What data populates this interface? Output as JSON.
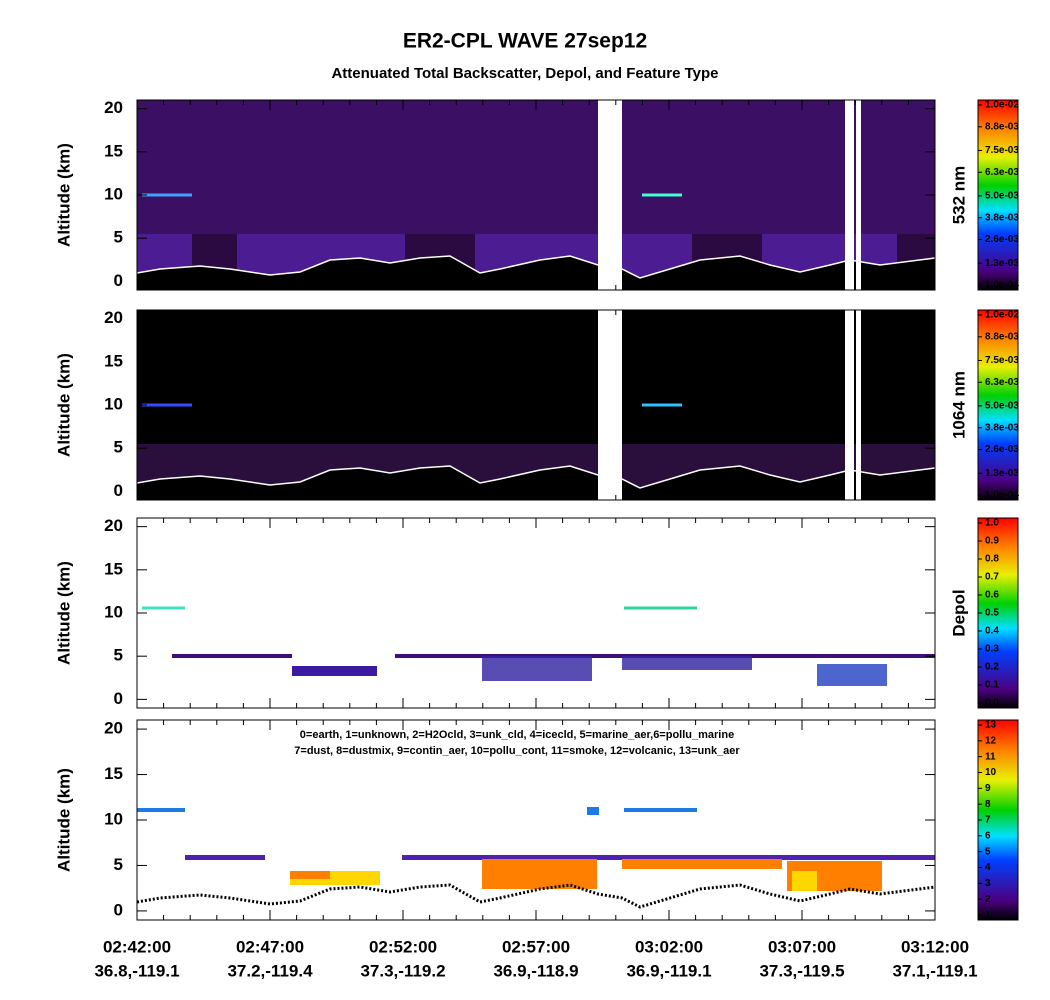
{
  "title": "ER2-CPL WAVE 27sep12",
  "subtitle": "Attenuated Total Backscatter, Depol, and Feature Type",
  "chart_data": [
    {
      "type": "heatmap",
      "ylabel": "Altitude (km)",
      "ylim": [
        -1,
        21
      ],
      "yticks": [
        0,
        5,
        10,
        15,
        20
      ],
      "colorbar": {
        "label": "532 nm",
        "clim": [
          0.0001,
          0.01
        ],
        "ticks": [
          {
            "value": 0.0001,
            "label": "1.0e-04"
          },
          {
            "value": 0.0013,
            "label": "1.3e-03"
          },
          {
            "value": 0.0026,
            "label": "2.6e-03"
          },
          {
            "value": 0.0038,
            "label": "3.8e-03"
          },
          {
            "value": 0.005,
            "label": "5.0e-03"
          },
          {
            "value": 0.0063,
            "label": "6.3e-03"
          },
          {
            "value": 0.0075,
            "label": "7.5e-03"
          },
          {
            "value": 0.0088,
            "label": "8.8e-03"
          },
          {
            "value": 0.01,
            "label": "1.0e-02"
          }
        ]
      }
    },
    {
      "type": "heatmap",
      "ylabel": "Altitude (km)",
      "ylim": [
        -1,
        21
      ],
      "yticks": [
        0,
        5,
        10,
        15,
        20
      ],
      "colorbar": {
        "label": "1064 nm",
        "clim": [
          0.0001,
          0.01
        ],
        "ticks": [
          {
            "value": 0.0001,
            "label": "1.0e-04"
          },
          {
            "value": 0.0013,
            "label": "1.3e-03"
          },
          {
            "value": 0.0026,
            "label": "2.6e-03"
          },
          {
            "value": 0.0038,
            "label": "3.8e-03"
          },
          {
            "value": 0.005,
            "label": "5.0e-03"
          },
          {
            "value": 0.0063,
            "label": "6.3e-03"
          },
          {
            "value": 0.0075,
            "label": "7.5e-03"
          },
          {
            "value": 0.0088,
            "label": "8.8e-03"
          },
          {
            "value": 0.01,
            "label": "1.0e-02"
          }
        ]
      }
    },
    {
      "type": "heatmap",
      "ylabel": "Altitude (km)",
      "ylim": [
        -1,
        21
      ],
      "yticks": [
        0,
        5,
        10,
        15,
        20
      ],
      "colorbar": {
        "label": "Depol",
        "clim": [
          0,
          1
        ],
        "ticks": [
          {
            "value": 0,
            "label": "0.0"
          },
          0.1,
          0.2,
          0.3,
          0.4,
          0.5,
          0.6,
          0.7,
          0.8,
          0.9,
          {
            "value": 1,
            "label": "1.0"
          }
        ]
      }
    },
    {
      "type": "heatmap",
      "ylabel": "Altitude (km)",
      "ylim": [
        -1,
        21
      ],
      "yticks": [
        0,
        5,
        10,
        15,
        20
      ],
      "annotations": [
        "0=earth, 1=unknown, 2=H2Ocld, 3=unk_cld, 4=icecld, 5=marine_aer,6=pollu_marine",
        "7=dust, 8=dustmix, 9=contin_aer, 10=pollu_cont, 11=smoke, 12=volcanic, 13=unk_aer"
      ],
      "colorbar": {
        "clim": [
          1,
          13
        ],
        "ticks": [
          1,
          2,
          3,
          4,
          5,
          6,
          7,
          8,
          9,
          10,
          11,
          12,
          13
        ]
      },
      "categories": [
        "02:42:00",
        "02:47:00",
        "02:52:00",
        "02:57:00",
        "03:02:00",
        "03:07:00",
        "03:12:00"
      ],
      "locations": [
        "36.8,-119.1",
        "37.2,-119.4",
        "37.3,-119.2",
        "36.9,-118.9",
        "36.9,-119.1",
        "37.3,-119.5",
        "37.1,-119.1"
      ]
    }
  ]
}
